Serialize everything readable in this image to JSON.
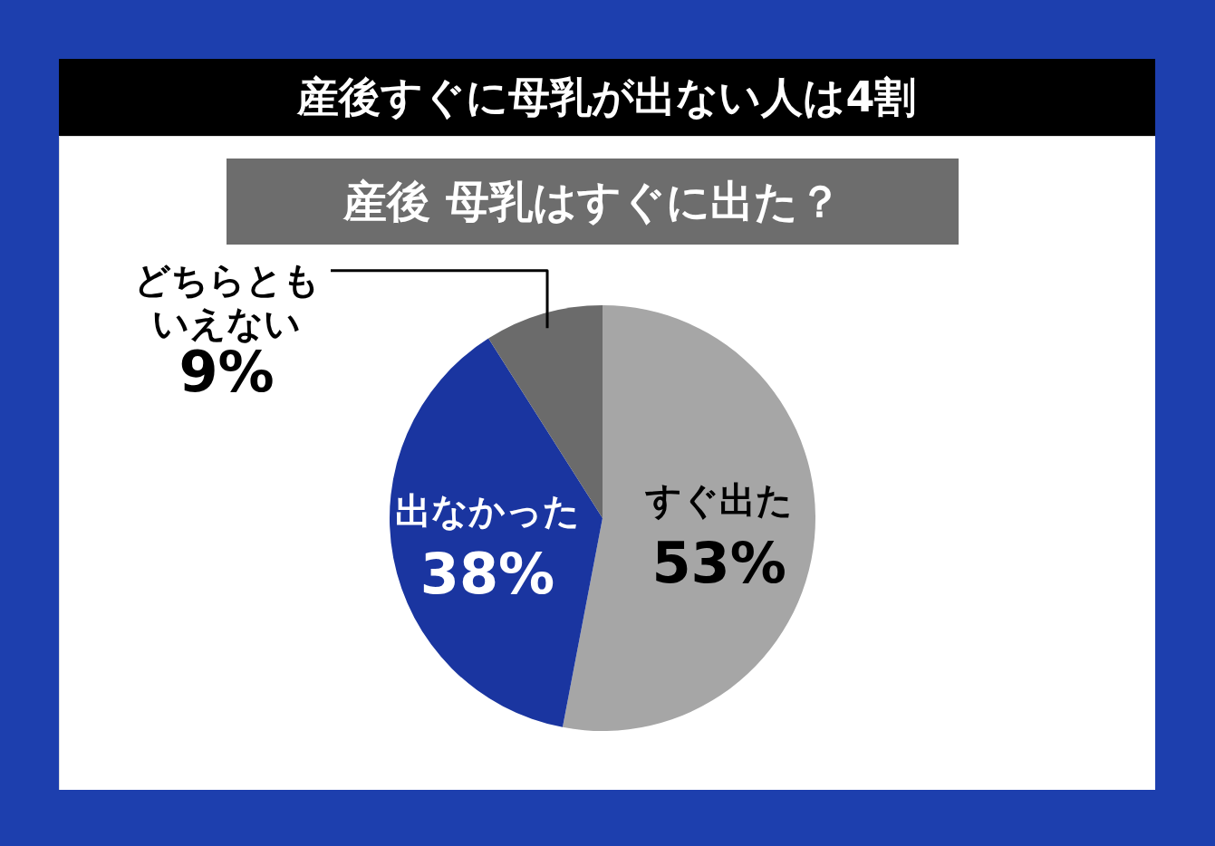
{
  "chart_data": {
    "type": "pie",
    "title": "産後すぐに母乳が出ない人は4割",
    "subtitle": "産後  母乳はすぐに出た？",
    "categories": [
      "すぐ出た",
      "出なかった",
      "どちらともいえない"
    ],
    "values": [
      53,
      38,
      9
    ],
    "value_labels": [
      "53%",
      "38%",
      "9%"
    ],
    "colors": [
      "#a6a6a6",
      "#1a35a0",
      "#6b6b6b"
    ]
  }
}
